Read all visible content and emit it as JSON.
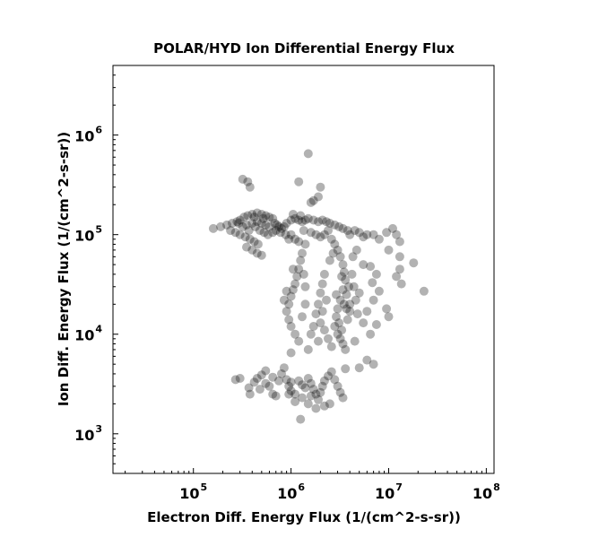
{
  "chart_data": {
    "type": "scatter",
    "title": "POLAR/HYD  Ion Differential Energy Flux",
    "xlabel": "Electron Diff. Energy Flux (1/(cm^2-s-sr))",
    "ylabel": "Ion Diff. Energy Flux (1/(cm^2-s-sr))",
    "xscale": "log",
    "yscale": "log",
    "xlim": [
      15000,
      120000000
    ],
    "ylim": [
      400,
      5000000
    ],
    "grid": false,
    "legend": "none",
    "marker_color": "#000000",
    "marker_opacity": 0.3,
    "x_ticks": [
      {
        "base": "10",
        "exp": "5",
        "value": 100000
      },
      {
        "base": "10",
        "exp": "6",
        "value": 1000000
      },
      {
        "base": "10",
        "exp": "7",
        "value": 10000000
      },
      {
        "base": "10",
        "exp": "8",
        "value": 100000000
      }
    ],
    "y_ticks": [
      {
        "base": "10",
        "exp": "3",
        "value": 1000
      },
      {
        "base": "10",
        "exp": "4",
        "value": 10000
      },
      {
        "base": "10",
        "exp": "5",
        "value": 100000
      },
      {
        "base": "10",
        "exp": "6",
        "value": 1000000
      }
    ],
    "points": [
      [
        1500000.0,
        650000.0
      ],
      [
        1200000.0,
        340000.0
      ],
      [
        320000.0,
        360000.0
      ],
      [
        360000.0,
        340000.0
      ],
      [
        380000.0,
        300000.0
      ],
      [
        1700000.0,
        220000.0
      ],
      [
        1900000.0,
        240000.0
      ],
      [
        2000000.0,
        300000.0
      ],
      [
        1600000.0,
        210000.0
      ],
      [
        160000.0,
        115000.0
      ],
      [
        190000.0,
        120000.0
      ],
      [
        220000.0,
        125000.0
      ],
      [
        250000.0,
        130000.0
      ],
      [
        280000.0,
        135000.0
      ],
      [
        300000.0,
        140000.0
      ],
      [
        330000.0,
        150000.0
      ],
      [
        360000.0,
        155000.0
      ],
      [
        400000.0,
        160000.0
      ],
      [
        450000.0,
        165000.0
      ],
      [
        500000.0,
        160000.0
      ],
      [
        550000.0,
        155000.0
      ],
      [
        600000.0,
        150000.0
      ],
      [
        650000.0,
        145000.0
      ],
      [
        240000.0,
        110000.0
      ],
      [
        270000.0,
        105000.0
      ],
      [
        300000.0,
        100000.0
      ],
      [
        340000.0,
        95000.0
      ],
      [
        380000.0,
        90000.0
      ],
      [
        420000.0,
        85000.0
      ],
      [
        460000.0,
        80000.0
      ],
      [
        350000.0,
        125000.0
      ],
      [
        400000.0,
        130000.0
      ],
      [
        450000.0,
        135000.0
      ],
      [
        500000.0,
        130000.0
      ],
      [
        550000.0,
        125000.0
      ],
      [
        600000.0,
        120000.0
      ],
      [
        320000.0,
        120000.0
      ],
      [
        370000.0,
        110000.0
      ],
      [
        430000.0,
        120000.0
      ],
      [
        480000.0,
        110000.0
      ],
      [
        530000.0,
        105000.0
      ],
      [
        580000.0,
        100000.0
      ],
      [
        650000.0,
        105000.0
      ],
      [
        700000.0,
        110000.0
      ],
      [
        350000.0,
        75000.0
      ],
      [
        400000.0,
        70000.0
      ],
      [
        450000.0,
        65000.0
      ],
      [
        500000.0,
        62000.0
      ],
      [
        420000.0,
        150000.0
      ],
      [
        520000.0,
        145000.0
      ],
      [
        290000.0,
        130000.0
      ],
      [
        680000.0,
        130000.0
      ],
      [
        720000.0,
        125000.0
      ],
      [
        750000.0,
        120000.0
      ],
      [
        800000.0,
        115000.0
      ],
      [
        850000.0,
        120000.0
      ],
      [
        900000.0,
        130000.0
      ],
      [
        1000000.0,
        140000.0
      ],
      [
        1100000.0,
        145000.0
      ],
      [
        1200000.0,
        140000.0
      ],
      [
        1300000.0,
        135000.0
      ],
      [
        1400000.0,
        140000.0
      ],
      [
        1500000.0,
        145000.0
      ],
      [
        1700000.0,
        140000.0
      ],
      [
        1900000.0,
        135000.0
      ],
      [
        2100000.0,
        140000.0
      ],
      [
        2300000.0,
        135000.0
      ],
      [
        2500000.0,
        130000.0
      ],
      [
        2800000.0,
        125000.0
      ],
      [
        3100000.0,
        120000.0
      ],
      [
        3400000.0,
        115000.0
      ],
      [
        3800000.0,
        110000.0
      ],
      [
        1050000.0,
        160000.0
      ],
      [
        1250000.0,
        155000.0
      ],
      [
        1000000.0,
        100000.0
      ],
      [
        1100000.0,
        90000.0
      ],
      [
        1200000.0,
        85000.0
      ],
      [
        1350000.0,
        110000.0
      ],
      [
        1600000.0,
        105000.0
      ],
      [
        1800000.0,
        100000.0
      ],
      [
        2000000.0,
        95000.0
      ],
      [
        2200000.0,
        100000.0
      ],
      [
        2400000.0,
        110000.0
      ],
      [
        880000.0,
        100000.0
      ],
      [
        950000.0,
        90000.0
      ],
      [
        780000.0,
        105000.0
      ],
      [
        4000000.0,
        100000.0
      ],
      [
        4500000.0,
        110000.0
      ],
      [
        5000000.0,
        105000.0
      ],
      [
        5500000.0,
        95000.0
      ],
      [
        6000000.0,
        100000.0
      ],
      [
        7000000.0,
        100000.0
      ],
      [
        8000000.0,
        90000.0
      ],
      [
        9500000.0,
        105000.0
      ],
      [
        11000000.0,
        115000.0
      ],
      [
        12000000.0,
        100000.0
      ],
      [
        13000000.0,
        85000.0
      ],
      [
        10000000.0,
        70000.0
      ],
      [
        13000000.0,
        60000.0
      ],
      [
        18000000.0,
        52000.0
      ],
      [
        13000000.0,
        45000.0
      ],
      [
        12000000.0,
        38000.0
      ],
      [
        13500000.0,
        32000.0
      ],
      [
        23000000.0,
        27000.0
      ],
      [
        9500000.0,
        18000.0
      ],
      [
        10000000.0,
        15000.0
      ],
      [
        8000000.0,
        27000.0
      ],
      [
        7500000.0,
        40000.0
      ],
      [
        6500000.0,
        48000.0
      ],
      [
        5500000.0,
        50000.0
      ],
      [
        6800000.0,
        33000.0
      ],
      [
        7000000.0,
        22000.0
      ],
      [
        6000000.0,
        17000.0
      ],
      [
        7500000.0,
        12500.0
      ],
      [
        6500000.0,
        10000.0
      ],
      [
        6000000.0,
        5500.0
      ],
      [
        7000000.0,
        5000.0
      ],
      [
        5000000.0,
        4600.0
      ],
      [
        4500000.0,
        8500.0
      ],
      [
        5500000.0,
        13000.0
      ],
      [
        4000000.0,
        20000.0
      ],
      [
        2600000.0,
        90000.0
      ],
      [
        2800000.0,
        80000.0
      ],
      [
        3000000.0,
        70000.0
      ],
      [
        3200000.0,
        60000.0
      ],
      [
        3400000.0,
        50000.0
      ],
      [
        3500000.0,
        42000.0
      ],
      [
        3600000.0,
        35000.0
      ],
      [
        3400000.0,
        28000.0
      ],
      [
        3200000.0,
        22000.0
      ],
      [
        3000000.0,
        18000.0
      ],
      [
        2900000.0,
        15000.0
      ],
      [
        2800000.0,
        12000.0
      ],
      [
        3000000.0,
        10000.0
      ],
      [
        3200000.0,
        9000.0
      ],
      [
        3400000.0,
        8000.0
      ],
      [
        3600000.0,
        7000.0
      ],
      [
        3800000.0,
        14000.0
      ],
      [
        4000000.0,
        17000.0
      ],
      [
        3700000.0,
        25000.0
      ],
      [
        3900000.0,
        30000.0
      ],
      [
        4200000.0,
        40000.0
      ],
      [
        4400000.0,
        30000.0
      ],
      [
        4600000.0,
        22000.0
      ],
      [
        4800000.0,
        16000.0
      ],
      [
        5000000.0,
        26000.0
      ],
      [
        4300000.0,
        60000.0
      ],
      [
        4700000.0,
        70000.0
      ],
      [
        3300000.0,
        38000.0
      ],
      [
        2700000.0,
        65000.0
      ],
      [
        2500000.0,
        55000.0
      ],
      [
        3100000.0,
        13000.0
      ],
      [
        3300000.0,
        11000.0
      ],
      [
        2900000.0,
        25000.0
      ],
      [
        3500000.0,
        20000.0
      ],
      [
        3700000.0,
        18000.0
      ],
      [
        2200000.0,
        40000.0
      ],
      [
        2100000.0,
        32000.0
      ],
      [
        2000000.0,
        26000.0
      ],
      [
        1900000.0,
        20000.0
      ],
      [
        1800000.0,
        16000.0
      ],
      [
        2000000.0,
        13000.0
      ],
      [
        2200000.0,
        11000.0
      ],
      [
        2400000.0,
        9000.0
      ],
      [
        2600000.0,
        7500.0
      ],
      [
        1700000.0,
        12000.0
      ],
      [
        1600000.0,
        10000.0
      ],
      [
        1900000.0,
        8500.0
      ],
      [
        2300000.0,
        22000.0
      ],
      [
        2100000.0,
        17000.0
      ],
      [
        1400000.0,
        80000.0
      ],
      [
        1300000.0,
        65000.0
      ],
      [
        1250000.0,
        55000.0
      ],
      [
        1200000.0,
        45000.0
      ],
      [
        1150000.0,
        38000.0
      ],
      [
        1100000.0,
        32000.0
      ],
      [
        1050000.0,
        28000.0
      ],
      [
        1000000.0,
        24000.0
      ],
      [
        950000.0,
        20000.0
      ],
      [
        900000.0,
        17000.0
      ],
      [
        950000.0,
        14000.0
      ],
      [
        1000000.0,
        12000.0
      ],
      [
        1100000.0,
        10000.0
      ],
      [
        1200000.0,
        8500.0
      ],
      [
        1300000.0,
        15000.0
      ],
      [
        1400000.0,
        20000.0
      ],
      [
        1500000.0,
        7000.0
      ],
      [
        1400000.0,
        30000.0
      ],
      [
        1350000.0,
        40000.0
      ],
      [
        1000000.0,
        6500.0
      ],
      [
        1050000.0,
        45000.0
      ],
      [
        900000.0,
        27000.0
      ],
      [
        850000.0,
        22000.0
      ],
      [
        270000.0,
        3500.0
      ],
      [
        300000.0,
        3600.0
      ],
      [
        370000.0,
        2900.0
      ],
      [
        380000.0,
        2500.0
      ],
      [
        450000.0,
        3600.0
      ],
      [
        500000.0,
        3900.0
      ],
      [
        550000.0,
        3200.0
      ],
      [
        600000.0,
        3000.0
      ],
      [
        650000.0,
        2500.0
      ],
      [
        700000.0,
        2400.0
      ],
      [
        750000.0,
        3400.0
      ],
      [
        800000.0,
        4000.0
      ],
      [
        850000.0,
        4600.0
      ],
      [
        900000.0,
        3500.0
      ],
      [
        950000.0,
        3000.0
      ],
      [
        1000000.0,
        2700.0
      ],
      [
        1100000.0,
        2500.0
      ],
      [
        1200000.0,
        3400.0
      ],
      [
        1300000.0,
        3100.0
      ],
      [
        1400000.0,
        2900.0
      ],
      [
        1500000.0,
        3600.0
      ],
      [
        1600000.0,
        3200.0
      ],
      [
        1700000.0,
        2800.0
      ],
      [
        1800000.0,
        2500.0
      ],
      [
        1900000.0,
        2200.0
      ],
      [
        2000000.0,
        2600.0
      ],
      [
        2100000.0,
        3000.0
      ],
      [
        2200000.0,
        3400.0
      ],
      [
        2400000.0,
        3800.0
      ],
      [
        2600000.0,
        4200.0
      ],
      [
        2800000.0,
        3500.0
      ],
      [
        3000000.0,
        3000.0
      ],
      [
        3200000.0,
        2600.0
      ],
      [
        3400000.0,
        2300.0
      ],
      [
        3600000.0,
        4500.0
      ],
      [
        2500000.0,
        2000.0
      ],
      [
        2200000.0,
        1900.0
      ],
      [
        1800000.0,
        1800.0
      ],
      [
        1500000.0,
        2000.0
      ],
      [
        1600000.0,
        2400.0
      ],
      [
        1300000.0,
        2300.0
      ],
      [
        1250000.0,
        1400.0
      ],
      [
        1100000.0,
        2100.0
      ],
      [
        950000.0,
        2500.0
      ],
      [
        1000000.0,
        3300.0
      ],
      [
        480000.0,
        2800.0
      ],
      [
        420000.0,
        3300.0
      ],
      [
        550000.0,
        4300.0
      ],
      [
        650000.0,
        3700.0
      ]
    ]
  }
}
